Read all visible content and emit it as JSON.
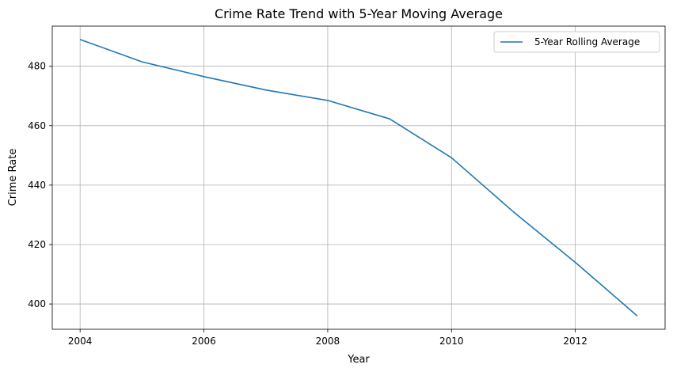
{
  "chart_data": {
    "type": "line",
    "title": "Crime Rate Trend with 5-Year Moving Average",
    "xlabel": "Year",
    "ylabel": "Crime Rate",
    "xlim": [
      2003.55,
      2013.45
    ],
    "ylim": [
      391.5,
      493.5
    ],
    "xticks": [
      2004,
      2006,
      2008,
      2010,
      2012
    ],
    "yticks": [
      400,
      420,
      440,
      460,
      480
    ],
    "grid": true,
    "legend_position": "top-right",
    "series": [
      {
        "name": "5-Year Rolling Average",
        "color": "#1f77b4",
        "x": [
          2004,
          2005,
          2006,
          2007,
          2008,
          2009,
          2010,
          2011,
          2012,
          2013
        ],
        "y": [
          489.0,
          481.5,
          476.5,
          472.0,
          468.5,
          462.3,
          449.2,
          431.0,
          414.0,
          396.0
        ]
      }
    ]
  }
}
